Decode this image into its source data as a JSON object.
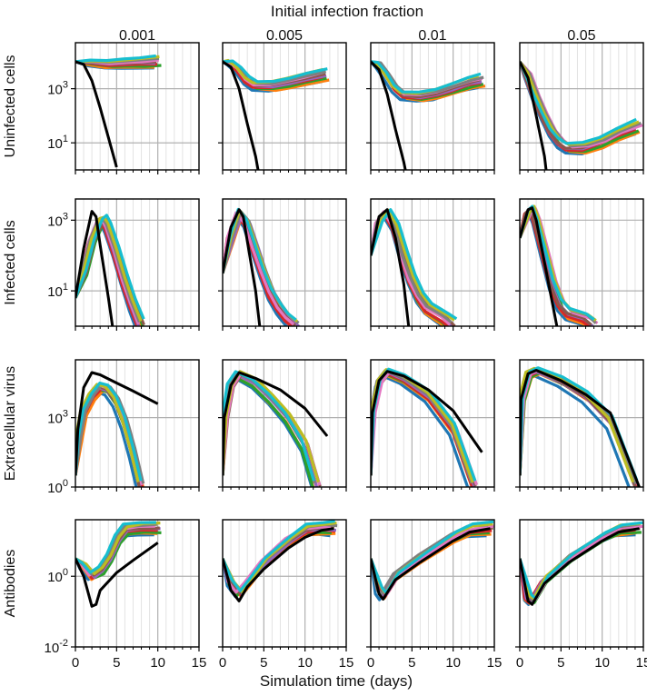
{
  "figure": {
    "title": "Initial infection fraction",
    "xlabel": "Simulation time (days)"
  },
  "columns": [
    "0.001",
    "0.005",
    "0.01",
    "0.05"
  ],
  "rows": [
    {
      "label": "Uninfected cells",
      "yticks": [
        {
          "text": "10",
          "sup": "3"
        },
        {
          "text": "10",
          "sup": "1"
        }
      ]
    },
    {
      "label": "Infected cells",
      "yticks": [
        {
          "text": "10",
          "sup": "3"
        },
        {
          "text": "10",
          "sup": "1"
        }
      ]
    },
    {
      "label": "Extracellular virus",
      "yticks": [
        {
          "text": "10",
          "sup": "3"
        },
        {
          "text": "10",
          "sup": "0"
        }
      ]
    },
    {
      "label": "Antibodies",
      "yticks": [
        {
          "text": "10",
          "sup": "0"
        },
        {
          "text": "10",
          "sup": "-2"
        }
      ]
    }
  ],
  "xticks": [
    "0",
    "5",
    "10",
    "15"
  ],
  "colors": {
    "reference": "#000000",
    "palette": [
      "#1f77b4",
      "#ff7f0e",
      "#2ca02c",
      "#d62728",
      "#9467bd",
      "#8c564b",
      "#e377c2",
      "#7f7f7f",
      "#bcbd22",
      "#17becf"
    ],
    "grid": "#b0b0b0"
  },
  "chart_data": {
    "type": "line",
    "description_units": "x in days; y as log10 value",
    "xlim": [
      0,
      15
    ],
    "ylims": [
      [
        0,
        4.7
      ],
      [
        0,
        3.6
      ],
      [
        0,
        5.5
      ],
      [
        -2,
        1.6
      ]
    ],
    "series_names": [
      "deterministic (black)",
      "stochastic runs (colored, 10 replicates)"
    ],
    "panels": [
      [
        {
          "black": [
            [
              0,
              4
            ],
            [
              1,
              3.9
            ],
            [
              2,
              3.3
            ],
            [
              3,
              2.3
            ],
            [
              4,
              1.2
            ],
            [
              5,
              0.1
            ]
          ],
          "colored": [
            [
              0,
              4
            ],
            [
              2,
              3.95
            ],
            [
              4,
              3.9
            ],
            [
              6,
              3.92
            ],
            [
              8,
              3.95
            ],
            [
              10,
              3.98
            ]
          ]
        },
        {
          "black": [
            [
              0,
              4
            ],
            [
              1,
              3.8
            ],
            [
              2,
              3
            ],
            [
              3,
              1.7
            ],
            [
              4,
              0.5
            ],
            [
              4.3,
              0
            ]
          ],
          "colored": [
            [
              0,
              4
            ],
            [
              1,
              3.95
            ],
            [
              2,
              3.7
            ],
            [
              3,
              3.3
            ],
            [
              4,
              3.1
            ],
            [
              6,
              3.1
            ],
            [
              8,
              3.2
            ],
            [
              10,
              3.35
            ],
            [
              12.5,
              3.5
            ]
          ]
        },
        {
          "black": [
            [
              0,
              4
            ],
            [
              1,
              3.7
            ],
            [
              2,
              2.8
            ],
            [
              3,
              1.5
            ],
            [
              4,
              0.3
            ],
            [
              4.2,
              0
            ]
          ],
          "colored": [
            [
              0,
              4
            ],
            [
              1,
              3.9
            ],
            [
              2,
              3.5
            ],
            [
              3,
              3
            ],
            [
              4,
              2.75
            ],
            [
              6,
              2.7
            ],
            [
              8,
              2.8
            ],
            [
              10,
              3
            ],
            [
              12,
              3.2
            ],
            [
              13.5,
              3.3
            ]
          ]
        },
        {
          "black": [
            [
              0,
              4
            ],
            [
              1,
              3.4
            ],
            [
              2,
              2
            ],
            [
              3,
              0.5
            ],
            [
              3.2,
              0
            ]
          ],
          "colored": [
            [
              0,
              4
            ],
            [
              1,
              3.5
            ],
            [
              2,
              2.7
            ],
            [
              3,
              2
            ],
            [
              4,
              1.4
            ],
            [
              5,
              1
            ],
            [
              6,
              0.8
            ],
            [
              8,
              0.8
            ],
            [
              10,
              1
            ],
            [
              12,
              1.3
            ],
            [
              14.5,
              1.6
            ]
          ]
        }
      ],
      [
        {
          "black": [
            [
              0,
              0.8
            ],
            [
              1,
              2.2
            ],
            [
              2,
              3.25
            ],
            [
              2.5,
              3.1
            ],
            [
              3,
              2.3
            ],
            [
              4,
              0.8
            ],
            [
              4.5,
              0
            ]
          ],
          "colored": [
            [
              0,
              0.8
            ],
            [
              1,
              1.5
            ],
            [
              2,
              2.4
            ],
            [
              3,
              2.95
            ],
            [
              3.5,
              3
            ],
            [
              4,
              2.8
            ],
            [
              5,
              2.1
            ],
            [
              6,
              1.3
            ],
            [
              7,
              0.6
            ],
            [
              8,
              0
            ]
          ]
        },
        {
          "black": [
            [
              0,
              1.5
            ],
            [
              1,
              2.8
            ],
            [
              2,
              3.3
            ],
            [
              2.5,
              3.1
            ],
            [
              3,
              2.4
            ],
            [
              4,
              1
            ],
            [
              4.5,
              0
            ]
          ],
          "colored": [
            [
              0,
              1.5
            ],
            [
              1,
              2.5
            ],
            [
              2,
              3.2
            ],
            [
              3,
              2.9
            ],
            [
              4,
              2.2
            ],
            [
              5,
              1.5
            ],
            [
              6,
              0.9
            ],
            [
              7,
              0.5
            ],
            [
              8,
              0.2
            ],
            [
              9,
              0
            ]
          ]
        },
        {
          "black": [
            [
              0,
              2
            ],
            [
              1,
              3.1
            ],
            [
              2,
              3.3
            ],
            [
              3,
              2.5
            ],
            [
              4,
              1.2
            ],
            [
              4.6,
              0
            ]
          ],
          "colored": [
            [
              0,
              2
            ],
            [
              1,
              2.9
            ],
            [
              2,
              3.2
            ],
            [
              3,
              2.8
            ],
            [
              4,
              2
            ],
            [
              5,
              1.3
            ],
            [
              6,
              0.8
            ],
            [
              7,
              0.5
            ],
            [
              9,
              0.2
            ],
            [
              10,
              0
            ]
          ]
        },
        {
          "black": [
            [
              0,
              2.5
            ],
            [
              1,
              3.3
            ],
            [
              1.5,
              3.35
            ],
            [
              2,
              3
            ],
            [
              3,
              1.8
            ],
            [
              4,
              0.6
            ],
            [
              4.5,
              0
            ]
          ],
          "colored": [
            [
              0,
              2.5
            ],
            [
              1,
              3.2
            ],
            [
              1.5,
              3.3
            ],
            [
              2,
              3
            ],
            [
              3,
              2.1
            ],
            [
              4,
              1.2
            ],
            [
              5,
              0.6
            ],
            [
              6,
              0.35
            ],
            [
              8,
              0.2
            ],
            [
              9,
              0
            ]
          ]
        }
      ],
      [
        {
          "black": [
            [
              0,
              0.5
            ],
            [
              0.3,
              2.5
            ],
            [
              1,
              4.3
            ],
            [
              2,
              4.95
            ],
            [
              3,
              4.85
            ],
            [
              5,
              4.5
            ],
            [
              7,
              4.15
            ],
            [
              10,
              3.6
            ]
          ],
          "colored": [
            [
              0,
              0.5
            ],
            [
              0.4,
              2
            ],
            [
              1,
              3.2
            ],
            [
              2,
              3.9
            ],
            [
              3,
              4.3
            ],
            [
              4,
              4.2
            ],
            [
              5,
              3.7
            ],
            [
              6,
              2.8
            ],
            [
              7,
              1.5
            ],
            [
              8,
              0
            ]
          ]
        },
        {
          "black": [
            [
              0,
              0.5
            ],
            [
              0.2,
              3
            ],
            [
              1,
              4.4
            ],
            [
              2,
              4.95
            ],
            [
              4,
              4.7
            ],
            [
              7,
              4.2
            ],
            [
              10,
              3.4
            ],
            [
              12.7,
              2.2
            ]
          ],
          "colored": [
            [
              0,
              0.5
            ],
            [
              0.3,
              3
            ],
            [
              1,
              4.3
            ],
            [
              2,
              4.85
            ],
            [
              4,
              4.5
            ],
            [
              6,
              3.8
            ],
            [
              8,
              3
            ],
            [
              10,
              1.8
            ],
            [
              11.5,
              0
            ]
          ]
        },
        {
          "black": [
            [
              0,
              0.5
            ],
            [
              0.2,
              3.2
            ],
            [
              1,
              4.6
            ],
            [
              2,
              5
            ],
            [
              4,
              4.8
            ],
            [
              7,
              4.2
            ],
            [
              10,
              3.3
            ],
            [
              13.5,
              1.5
            ]
          ],
          "colored": [
            [
              0,
              0.5
            ],
            [
              0.2,
              3.2
            ],
            [
              1,
              4.5
            ],
            [
              2,
              4.95
            ],
            [
              4,
              4.65
            ],
            [
              7,
              3.9
            ],
            [
              10,
              2.5
            ],
            [
              12.5,
              0
            ]
          ]
        },
        {
          "black": [
            [
              0,
              0.5
            ],
            [
              0.15,
              3.8
            ],
            [
              1,
              4.9
            ],
            [
              2,
              5.05
            ],
            [
              5,
              4.6
            ],
            [
              8,
              4
            ],
            [
              11,
              3.2
            ],
            [
              14.5,
              0
            ]
          ],
          "colored": [
            [
              0,
              0.5
            ],
            [
              0.15,
              3.8
            ],
            [
              1,
              4.85
            ],
            [
              2,
              5
            ],
            [
              5,
              4.55
            ],
            [
              8,
              3.9
            ],
            [
              11,
              2.8
            ],
            [
              14,
              0
            ]
          ]
        }
      ],
      [
        {
          "black": [
            [
              0,
              0.5
            ],
            [
              1,
              0
            ],
            [
              2,
              -0.85
            ],
            [
              2.5,
              -0.8
            ],
            [
              3,
              -0.4
            ],
            [
              5,
              0.1
            ],
            [
              7,
              0.45
            ],
            [
              10,
              0.95
            ]
          ],
          "colored": [
            [
              0,
              0.5
            ],
            [
              1,
              0.3
            ],
            [
              2,
              0
            ],
            [
              3,
              0.15
            ],
            [
              4,
              0.5
            ],
            [
              5,
              1
            ],
            [
              6,
              1.3
            ],
            [
              8,
              1.35
            ],
            [
              10,
              1.35
            ]
          ]
        },
        {
          "black": [
            [
              0,
              0.5
            ],
            [
              1,
              -0.4
            ],
            [
              2,
              -0.7
            ],
            [
              3,
              -0.3
            ],
            [
              5,
              0.2
            ],
            [
              8,
              0.8
            ],
            [
              10,
              1.1
            ],
            [
              12,
              1.3
            ],
            [
              13.5,
              1.35
            ]
          ],
          "colored": [
            [
              0,
              0.5
            ],
            [
              1,
              -0.2
            ],
            [
              2,
              -0.5
            ],
            [
              3,
              -0.2
            ],
            [
              5,
              0.4
            ],
            [
              8,
              1
            ],
            [
              10,
              1.3
            ],
            [
              12,
              1.35
            ],
            [
              13.5,
              1.35
            ]
          ]
        },
        {
          "black": [
            [
              0,
              0.5
            ],
            [
              1,
              -0.5
            ],
            [
              1.5,
              -0.65
            ],
            [
              3,
              -0.1
            ],
            [
              6,
              0.4
            ],
            [
              10,
              1
            ],
            [
              12,
              1.25
            ],
            [
              14.5,
              1.35
            ]
          ],
          "colored": [
            [
              0,
              0.5
            ],
            [
              1,
              -0.4
            ],
            [
              1.5,
              -0.55
            ],
            [
              3,
              0
            ],
            [
              6,
              0.5
            ],
            [
              10,
              1.1
            ],
            [
              12,
              1.3
            ],
            [
              14.5,
              1.35
            ]
          ]
        },
        {
          "black": [
            [
              0,
              0.5
            ],
            [
              1,
              -0.7
            ],
            [
              1.5,
              -0.8
            ],
            [
              3,
              -0.2
            ],
            [
              6,
              0.4
            ],
            [
              10,
              1
            ],
            [
              12,
              1.25
            ],
            [
              14.5,
              1.35
            ]
          ],
          "colored": [
            [
              0,
              0.5
            ],
            [
              1,
              -0.6
            ],
            [
              1.5,
              -0.7
            ],
            [
              3,
              -0.1
            ],
            [
              6,
              0.5
            ],
            [
              10,
              1.1
            ],
            [
              12,
              1.3
            ],
            [
              14.5,
              1.35
            ]
          ]
        }
      ]
    ]
  }
}
